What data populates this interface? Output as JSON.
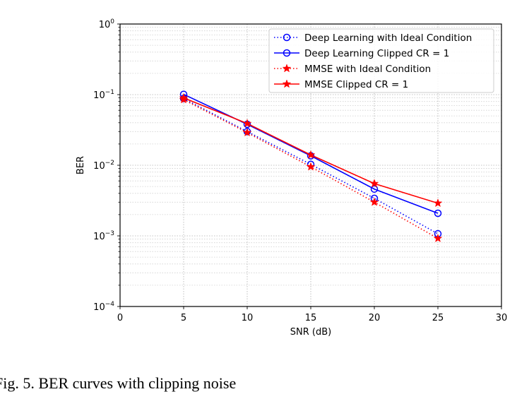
{
  "caption": "Fig. 5.  BER curves with clipping noise",
  "chart_data": {
    "type": "line",
    "xlabel": "SNR (dB)",
    "ylabel": "BER",
    "xlim": [
      0,
      30
    ],
    "ylim": [
      0.0001,
      1
    ],
    "yscale": "log",
    "grid": true,
    "legend_position": "top-right",
    "xticks": [
      0,
      5,
      10,
      15,
      20,
      25,
      30
    ],
    "yticks": [
      {
        "value": 1,
        "base": "10",
        "exp": "0"
      },
      {
        "value": 0.1,
        "base": "10",
        "exp": "−1"
      },
      {
        "value": 0.01,
        "base": "10",
        "exp": "−2"
      },
      {
        "value": 0.001,
        "base": "10",
        "exp": "−3"
      },
      {
        "value": 0.0001,
        "base": "10",
        "exp": "−4"
      }
    ],
    "series": [
      {
        "name": "Deep Learning with Ideal Condition",
        "color": "#0000ff",
        "line": "dotted",
        "marker": "circle",
        "x": [
          5,
          10,
          15,
          20,
          25
        ],
        "y": [
          0.088,
          0.03,
          0.0103,
          0.0034,
          0.00107
        ]
      },
      {
        "name": "Deep Learning Clipped CR = 1",
        "color": "#0000ff",
        "line": "solid",
        "marker": "circle",
        "x": [
          5,
          10,
          15,
          20,
          25
        ],
        "y": [
          0.101,
          0.038,
          0.0136,
          0.0046,
          0.00209
        ]
      },
      {
        "name": "MMSE with Ideal Condition",
        "color": "#ff0000",
        "line": "dotted",
        "marker": "star",
        "x": [
          5,
          10,
          15,
          20,
          25
        ],
        "y": [
          0.085,
          0.029,
          0.0095,
          0.003,
          0.00092
        ]
      },
      {
        "name": "MMSE Clipped CR = 1",
        "color": "#ff0000",
        "line": "solid",
        "marker": "star",
        "x": [
          5,
          10,
          15,
          20,
          25
        ],
        "y": [
          0.09,
          0.039,
          0.014,
          0.0055,
          0.0029
        ]
      }
    ]
  }
}
